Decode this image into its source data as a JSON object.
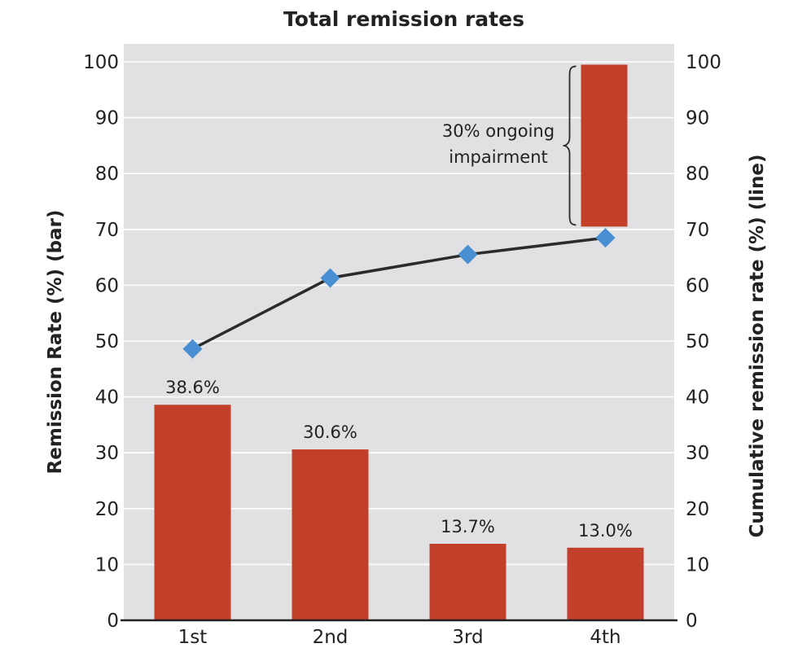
{
  "chart_data": {
    "type": "bar",
    "title": "Total remission rates",
    "categories": [
      "1st",
      "2nd",
      "3rd",
      "4th"
    ],
    "ylabel": "Remission Rate (%) (bar)",
    "y2label": "Cumulative remission rate (%) (line)",
    "ylim": [
      0,
      100
    ],
    "y2lim": [
      0,
      100
    ],
    "yticks": [
      0,
      10,
      20,
      30,
      40,
      50,
      60,
      70,
      80,
      90,
      100
    ],
    "grid": true,
    "series": [
      {
        "kind": "bar",
        "values": [
          38.6,
          30.6,
          13.7,
          13.0
        ],
        "labels": [
          "38.6%",
          "30.6%",
          "13.7%",
          "13.0%"
        ],
        "color": "#c2402a"
      },
      {
        "kind": "line",
        "values": [
          48.6,
          61.3,
          65.5,
          68.5
        ],
        "color": "#2b2b2b",
        "marker_color": "#4a8fd4"
      }
    ],
    "annotation": {
      "text_lines": [
        "30% ongoing",
        "impairment"
      ],
      "category": "4th",
      "range": [
        70.5,
        99.5
      ]
    },
    "colors": {
      "background": "#e1e1e3",
      "grid": "#ffffff",
      "bar": "#c2402a",
      "marker": "#4a8fd4",
      "line": "#2b2b2b"
    }
  }
}
